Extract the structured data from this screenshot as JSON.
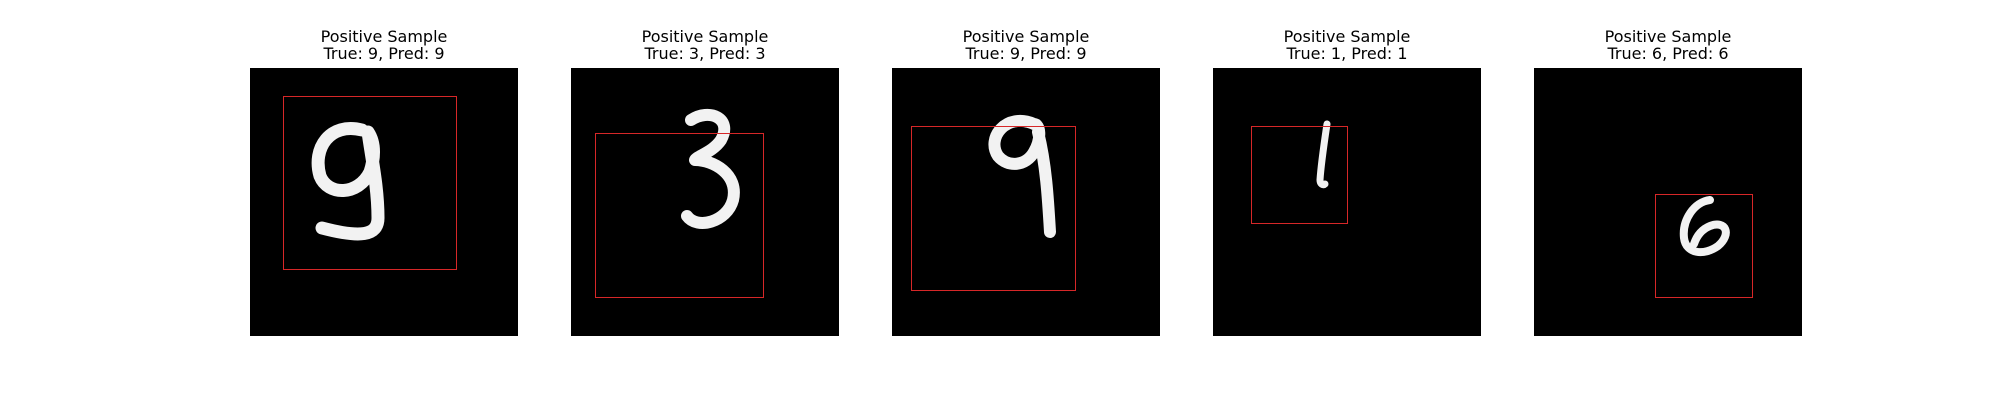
{
  "samples": [
    {
      "title": "Positive Sample",
      "subtitle": "True: 9, Pred: 9",
      "true_label": 9,
      "pred_label": 9,
      "digit": "9"
    },
    {
      "title": "Positive Sample",
      "subtitle": "True: 3, Pred: 3",
      "true_label": 3,
      "pred_label": 3,
      "digit": "3"
    },
    {
      "title": "Positive Sample",
      "subtitle": "True: 9, Pred: 9",
      "true_label": 9,
      "pred_label": 9,
      "digit": "9"
    },
    {
      "title": "Positive Sample",
      "subtitle": "True: 1, Pred: 1",
      "true_label": 1,
      "pred_label": 1,
      "digit": "1"
    },
    {
      "title": "Positive Sample",
      "subtitle": "True: 6, Pred: 6",
      "true_label": 6,
      "pred_label": 6,
      "digit": "6"
    }
  ],
  "colors": {
    "background": "#000000",
    "digit": "#f2f2f2",
    "bbox": "#d62728"
  },
  "icons": {
    "digit_image": "handwritten-digit-image",
    "bounding_box": "red-rectangle"
  }
}
